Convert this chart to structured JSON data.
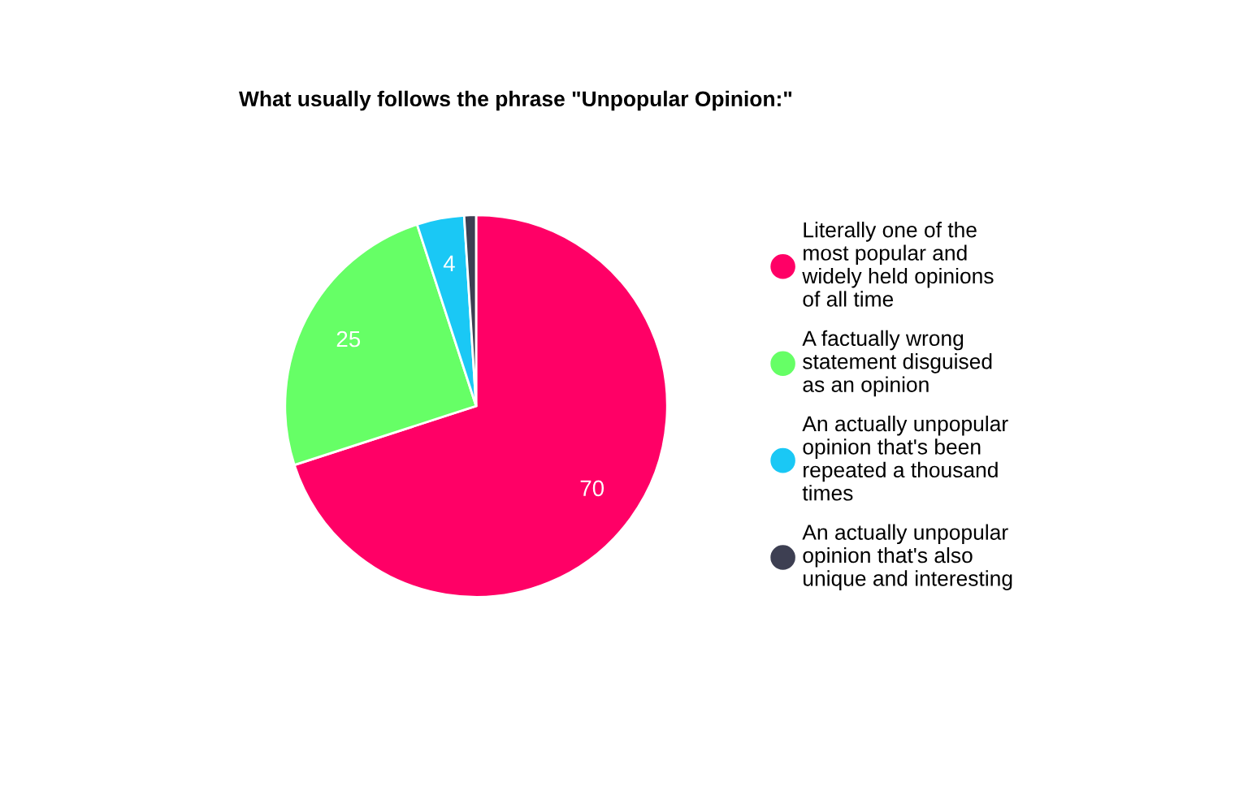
{
  "chart_data": {
    "type": "pie",
    "title": "What usually follows the phrase \"Unpopular Opinion:\"",
    "categories": [
      "Literally one of the\nmost popular and\nwidely held opinions\nof all time",
      "A factually wrong\nstatement disguised\nas an opinion",
      "An actually unpopular\nopinion that's been\nrepeated a thousand\ntimes",
      "An actually unpopular\nopinion that's also\nunique and interesting"
    ],
    "values": [
      70,
      25,
      4,
      1
    ],
    "colors": [
      "#ff0066",
      "#66ff66",
      "#1ac8f5",
      "#3d3f52"
    ],
    "value_labels": [
      "70",
      "25",
      "4",
      null
    ],
    "legend": "right"
  }
}
